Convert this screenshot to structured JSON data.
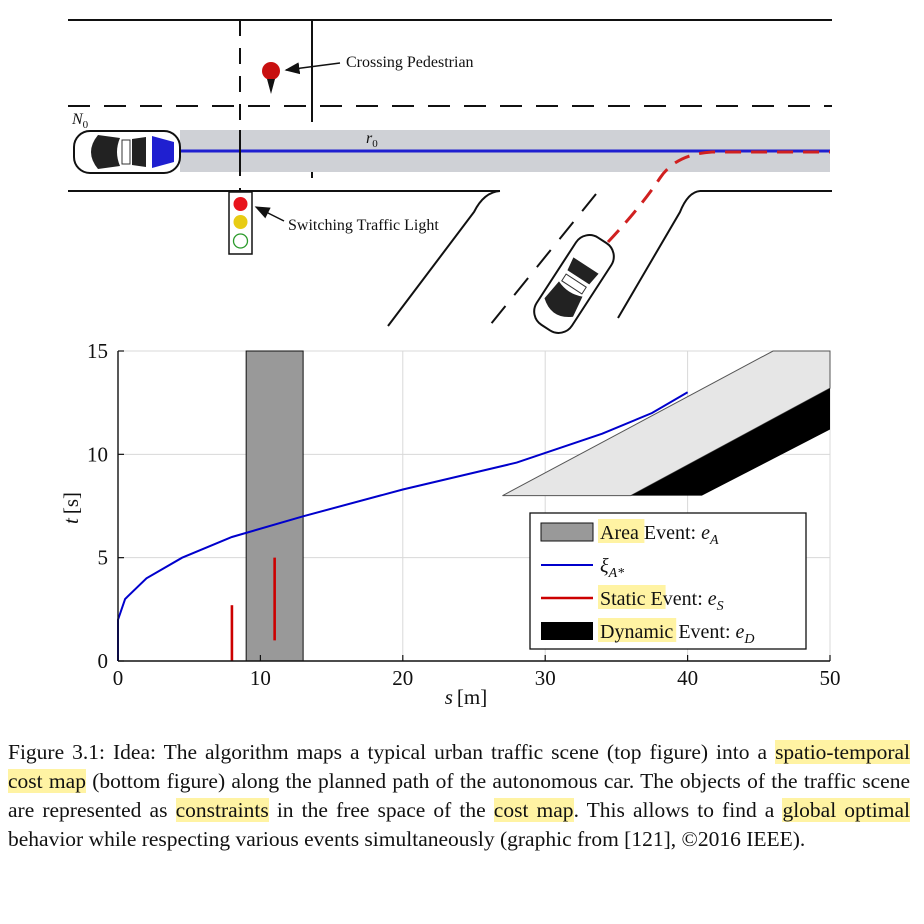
{
  "scene": {
    "node_label": "N",
    "node_sub": "0",
    "route_label": "r",
    "route_sub": "0",
    "pedestrian_label": "Crossing Pedestrian",
    "traffic_light_label": "Switching Traffic Light",
    "traffic_light_lamps": [
      "red",
      "yellow",
      "off"
    ],
    "colors": {
      "route": "#1f1fd0",
      "corridor": "#cfd1d6",
      "pedestrian": "#c81010",
      "alt_path": "#d02020"
    }
  },
  "chart_data": {
    "type": "line",
    "xlabel_var": "s",
    "xlabel_unit": "[m]",
    "ylabel_var": "t",
    "ylabel_unit": "[s]",
    "xlim": [
      0,
      50
    ],
    "ylim": [
      0,
      15
    ],
    "xticks": [
      0,
      10,
      20,
      30,
      40,
      50
    ],
    "yticks": [
      0,
      5,
      10,
      15
    ],
    "grid": true,
    "legend_position": "bottom-right",
    "area_event": {
      "s": [
        9,
        13
      ],
      "t": [
        0,
        15
      ],
      "color": "#999999"
    },
    "static_events": [
      {
        "s": 8,
        "t": [
          0,
          2.7
        ],
        "color": "#cc0000"
      },
      {
        "s": 11,
        "t": [
          1,
          5
        ],
        "color": "#cc0000"
      }
    ],
    "dynamic_event_light": [
      [
        27,
        8
      ],
      [
        46,
        15
      ],
      [
        50,
        15
      ],
      [
        50,
        13.2
      ],
      [
        36,
        8
      ]
    ],
    "dynamic_event_dark": [
      [
        36,
        8
      ],
      [
        50,
        13.2
      ],
      [
        50,
        11.2
      ],
      [
        41,
        8
      ]
    ],
    "trajectory": {
      "color": "#0000cc",
      "x": [
        0,
        0,
        0.5,
        2,
        4.5,
        8,
        13,
        20,
        28,
        34,
        37.5,
        40
      ],
      "y": [
        0,
        2,
        3,
        4,
        5,
        6,
        7,
        8.3,
        9.6,
        11,
        12,
        13
      ]
    },
    "legend": [
      {
        "highlight": "Area",
        "rest": " Event: ",
        "var": "e",
        "sub": "A",
        "swatch": "area"
      },
      {
        "highlight": "",
        "rest": "",
        "var": "ξ",
        "sub": "A*",
        "swatch": "line"
      },
      {
        "highlight": "Static",
        "rest": " Event: ",
        "var": "e",
        "sub": "S",
        "swatch": "static"
      },
      {
        "highlight": "Dynamic",
        "rest": " Event: ",
        "var": "e",
        "sub": "D",
        "swatch": "dynamic"
      }
    ]
  },
  "caption": {
    "parts": [
      {
        "text": "Figure 3.1: Idea: The algorithm maps a typical urban traffic scene (top figure) into a ",
        "hl": false
      },
      {
        "text": "spatio-temporal cost map",
        "hl": true
      },
      {
        "text": " (bottom figure) along the planned path of the autonomous car. The objects of the traffic scene are represented as ",
        "hl": false
      },
      {
        "text": "constraints",
        "hl": true
      },
      {
        "text": " in the free space of the ",
        "hl": false
      },
      {
        "text": "cost map",
        "hl": true
      },
      {
        "text": ". This allows to find a ",
        "hl": false
      },
      {
        "text": "global optimal",
        "hl": true
      },
      {
        "text": " behavior while respecting various events simultaneously (graphic from [121], ©2016 IEEE).",
        "hl": false
      }
    ]
  }
}
